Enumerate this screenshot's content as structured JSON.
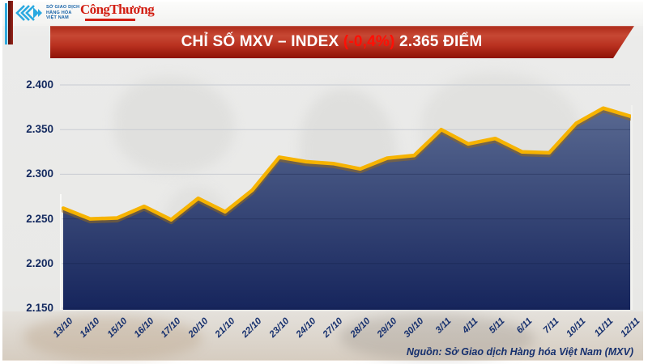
{
  "header": {
    "exchange_name_lines": [
      "SỞ GIAO DỊCH",
      "HÀNG HÓA",
      "VIỆT NAM"
    ],
    "newspaper_logo": "CôngThương"
  },
  "banner": {
    "title_prefix": "CHỈ SỐ MXV – INDEX",
    "change": "(-0,4%)",
    "value": "2.365 ĐIỂM",
    "colors": {
      "banner_red": "#b02a18",
      "change_red": "#ff0f05",
      "title_text": "#ffffff"
    }
  },
  "source_note": "Nguồn: Sở Giao dịch Hàng hóa Việt Nam (MXV)",
  "chart_data": {
    "type": "area",
    "title": "CHỈ SỐ MXV – INDEX (-0,4%) 2.365 ĐIỂM",
    "categories": [
      "13/10",
      "14/10",
      "15/10",
      "16/10",
      "17/10",
      "20/10",
      "21/10",
      "22/10",
      "23/10",
      "24/10",
      "27/10",
      "28/10",
      "29/10",
      "30/10",
      "3/11",
      "4/11",
      "5/11",
      "6/11",
      "7/11",
      "10/11",
      "11/11",
      "12/11"
    ],
    "values": [
      2262,
      2250,
      2251,
      2264,
      2249,
      2273,
      2258,
      2282,
      2319,
      2314,
      2312,
      2306,
      2318,
      2321,
      2350,
      2334,
      2340,
      2325,
      2324,
      2357,
      2374,
      2365
    ],
    "ylim": [
      2150,
      2400
    ],
    "ytick_values": [
      2400,
      2350,
      2300,
      2250,
      2200,
      2150
    ],
    "ytick_labels": [
      "2.400",
      "2.350",
      "2.300",
      "2.250",
      "2.200",
      "2.150"
    ],
    "xlabel": "",
    "ylabel": "",
    "grid": "horizontal",
    "legend_position": "none",
    "colors": {
      "line": "#f6b301",
      "line_shadow": "#9c6c14",
      "area_top": "#5a6a92",
      "area_bottom": "#16255c",
      "grid": "#c7cbd2",
      "axis_text": "#152a66"
    }
  }
}
